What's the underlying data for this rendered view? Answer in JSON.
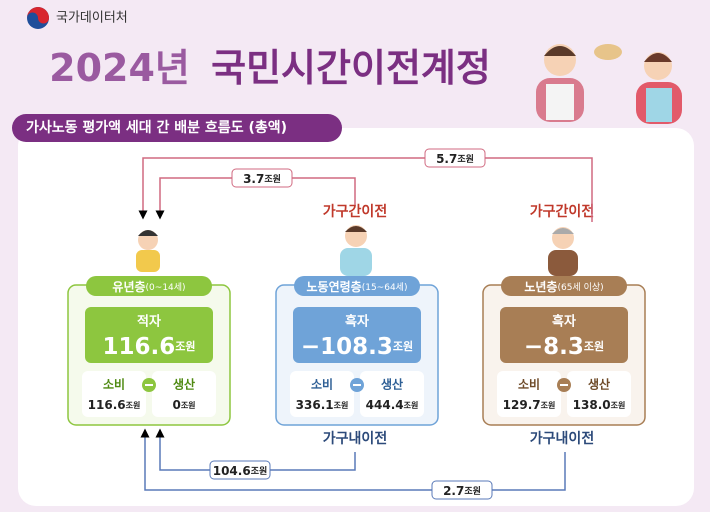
{
  "header": {
    "org": "국가데이터처",
    "year": "2024년",
    "title": "국민시간이전계정"
  },
  "section_title": "가사노동 평가액 세대 간 배분 흐름도 (총액)",
  "unit": "조원",
  "groups": [
    {
      "name": "유년층",
      "age": "(0~14세)",
      "balance_label": "적자",
      "balance": "116.6",
      "consumption_label": "소비",
      "consumption": "116.6",
      "production_label": "생산",
      "production": "0"
    },
    {
      "name": "노동연령층",
      "age": "(15~64세)",
      "balance_label": "흑자",
      "balance": "−108.3",
      "consumption_label": "소비",
      "consumption": "336.1",
      "production_label": "생산",
      "production": "444.4"
    },
    {
      "name": "노년층",
      "age": "(65세 이상)",
      "balance_label": "흑자",
      "balance": "−8.3",
      "consumption_label": "소비",
      "consumption": "129.7",
      "production_label": "생산",
      "production": "138.0"
    }
  ],
  "inter_household_label": "가구간이전",
  "intra_household_label": "가구내이전",
  "flows": [
    {
      "kind": "inter",
      "from": "노년층",
      "to": "유년층",
      "value": "5.7"
    },
    {
      "kind": "inter",
      "from": "노동연령층",
      "to": "유년층",
      "value": "3.7"
    },
    {
      "kind": "intra",
      "from": "노동연령층",
      "to": "유년층",
      "value": "104.6"
    },
    {
      "kind": "intra",
      "from": "노년층",
      "to": "유년층",
      "value": "2.7"
    }
  ]
}
